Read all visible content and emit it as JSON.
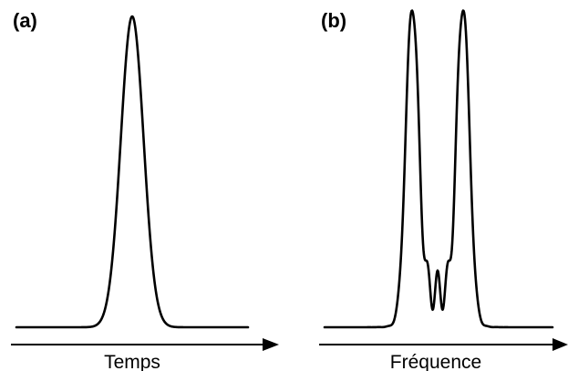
{
  "panels": [
    {
      "label": "(a)",
      "axis_label": "Temps",
      "curve_shape": "single gaussian peak"
    },
    {
      "label": "(b)",
      "axis_label": "Fréquence",
      "curve_shape": "two outer peaks with three smaller oscillations between them"
    }
  ],
  "colors": {
    "line": "#000000",
    "background": "#ffffff"
  }
}
